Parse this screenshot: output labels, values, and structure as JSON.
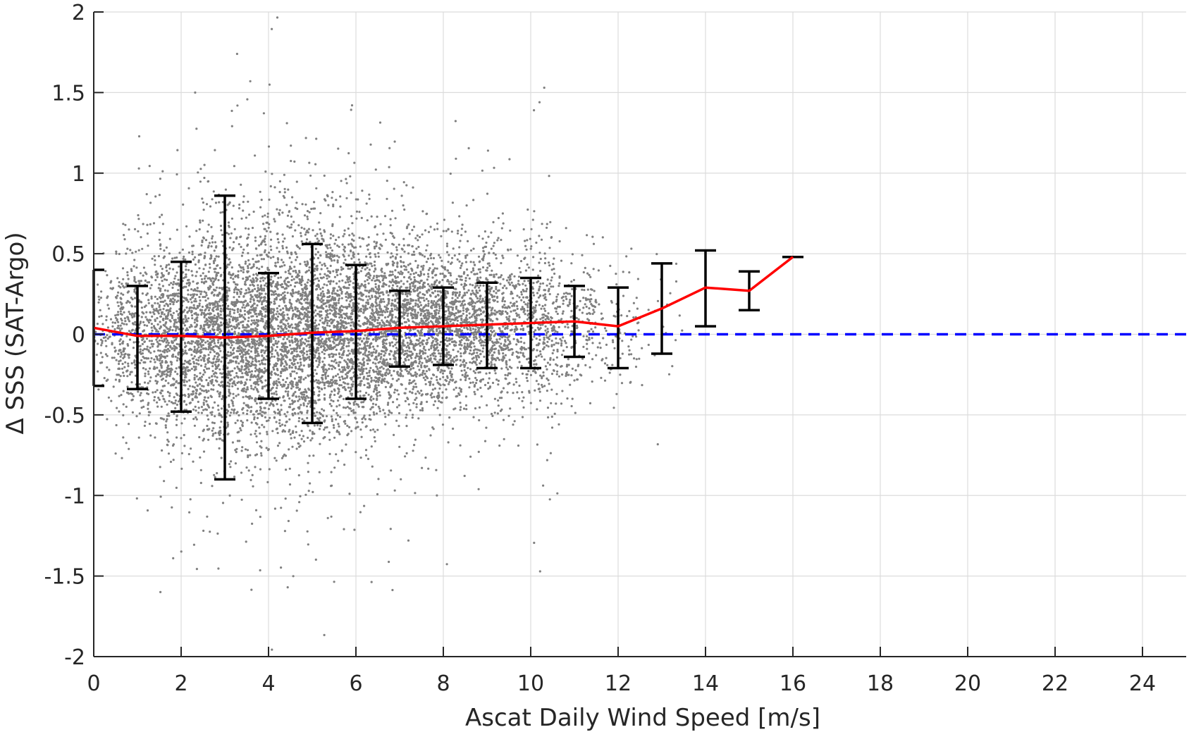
{
  "chart_data": {
    "type": "scatter",
    "title": "",
    "xlabel": "Ascat Daily Wind Speed [m/s]",
    "ylabel": "Δ SSS (SAT-Argo)",
    "xlim": [
      0,
      25
    ],
    "ylim": [
      -2,
      2
    ],
    "xticks": [
      0,
      2,
      4,
      6,
      8,
      10,
      12,
      14,
      16,
      18,
      20,
      22,
      24
    ],
    "xtick_labels": [
      "0",
      "2",
      "4",
      "6",
      "8",
      "10",
      "12",
      "14",
      "16",
      "18",
      "20",
      "22",
      "24"
    ],
    "yticks": [
      -2,
      -1.5,
      -1,
      -0.5,
      0,
      0.5,
      1,
      1.5,
      2
    ],
    "ytick_labels": [
      "-2",
      "-1.5",
      "-1",
      "-0.5",
      "0",
      "0.5",
      "1",
      "1.5",
      "2"
    ],
    "grid": true,
    "colors": {
      "scatter": "#808080",
      "mean_line": "#ff0000",
      "errorbar": "#000000",
      "reference_line": "#0000ff",
      "grid": "#dcdcdc",
      "axis": "#262626"
    },
    "series": [
      {
        "kind": "scatter-cloud",
        "description_values": "dense cloud of matchup points, mostly within wind 0-13 m/s, spread widest at 3-6 m/s",
        "point_density_profile": {
          "x": [
            0,
            1,
            2,
            3,
            4,
            5,
            6,
            7,
            8,
            9,
            10,
            11,
            12,
            13
          ],
          "center_y": [
            0.03,
            -0.01,
            -0.01,
            -0.01,
            0.0,
            0.02,
            0.03,
            0.04,
            0.05,
            0.06,
            0.07,
            0.07,
            0.04,
            0.12
          ],
          "std_y": [
            0.2,
            0.26,
            0.3,
            0.33,
            0.33,
            0.33,
            0.3,
            0.26,
            0.24,
            0.23,
            0.23,
            0.22,
            0.2,
            0.2
          ],
          "relative_count": [
            0.15,
            0.45,
            0.75,
            0.95,
            1.0,
            1.0,
            0.95,
            0.85,
            0.75,
            0.6,
            0.4,
            0.22,
            0.08,
            0.02
          ]
        }
      },
      {
        "kind": "mean-line",
        "x": [
          0,
          1,
          2,
          3,
          4,
          5,
          6,
          7,
          8,
          9,
          10,
          11,
          12,
          13,
          14,
          15,
          16
        ],
        "y": [
          0.04,
          -0.01,
          -0.01,
          -0.02,
          -0.01,
          0.01,
          0.02,
          0.04,
          0.05,
          0.06,
          0.07,
          0.08,
          0.05,
          0.16,
          0.29,
          0.27,
          0.48
        ]
      },
      {
        "kind": "errorbars",
        "x": [
          0,
          1,
          2,
          3,
          4,
          5,
          6,
          7,
          8,
          9,
          10,
          11,
          12,
          13,
          14,
          15,
          16
        ],
        "upper": [
          0.4,
          0.3,
          0.45,
          0.86,
          0.38,
          0.56,
          0.43,
          0.27,
          0.29,
          0.32,
          0.35,
          0.3,
          0.29,
          0.44,
          0.52,
          0.39,
          0.48
        ],
        "lower": [
          -0.32,
          -0.34,
          -0.48,
          -0.9,
          -0.4,
          -0.55,
          -0.4,
          -0.2,
          -0.19,
          -0.21,
          -0.21,
          -0.14,
          -0.21,
          -0.12,
          0.05,
          0.15,
          0.48
        ]
      },
      {
        "kind": "reference-line",
        "y": 0,
        "style": "dashed"
      }
    ]
  }
}
